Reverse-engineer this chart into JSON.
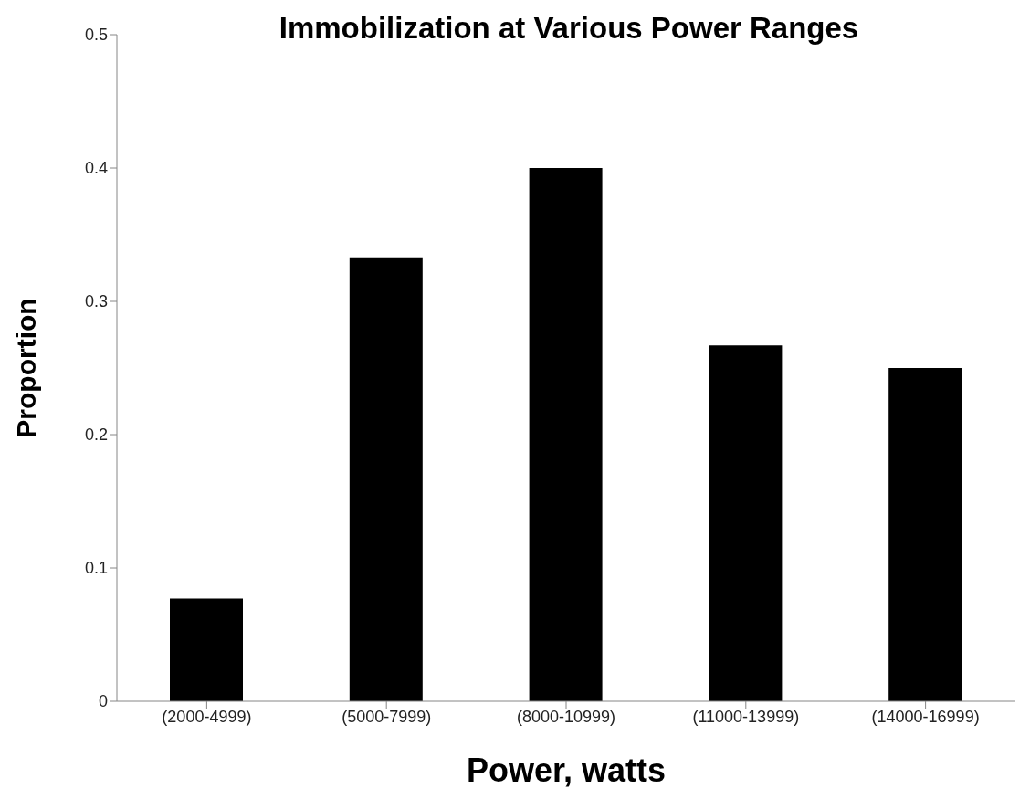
{
  "chart_data": {
    "type": "bar",
    "title": "Immobilization at Various Power Ranges",
    "xlabel": "Power, watts",
    "ylabel": "Proportion",
    "categories": [
      "(2000-4999)",
      "(5000-7999)",
      "(8000-10999)",
      "(11000-13999)",
      "(14000-16999)"
    ],
    "values": [
      0.077,
      0.333,
      0.4,
      0.267,
      0.25
    ],
    "color": "#000000",
    "ylim": [
      0,
      0.5
    ],
    "yticks": [
      0,
      0.1,
      0.2,
      0.3,
      0.4,
      0.5
    ],
    "grid": false
  }
}
